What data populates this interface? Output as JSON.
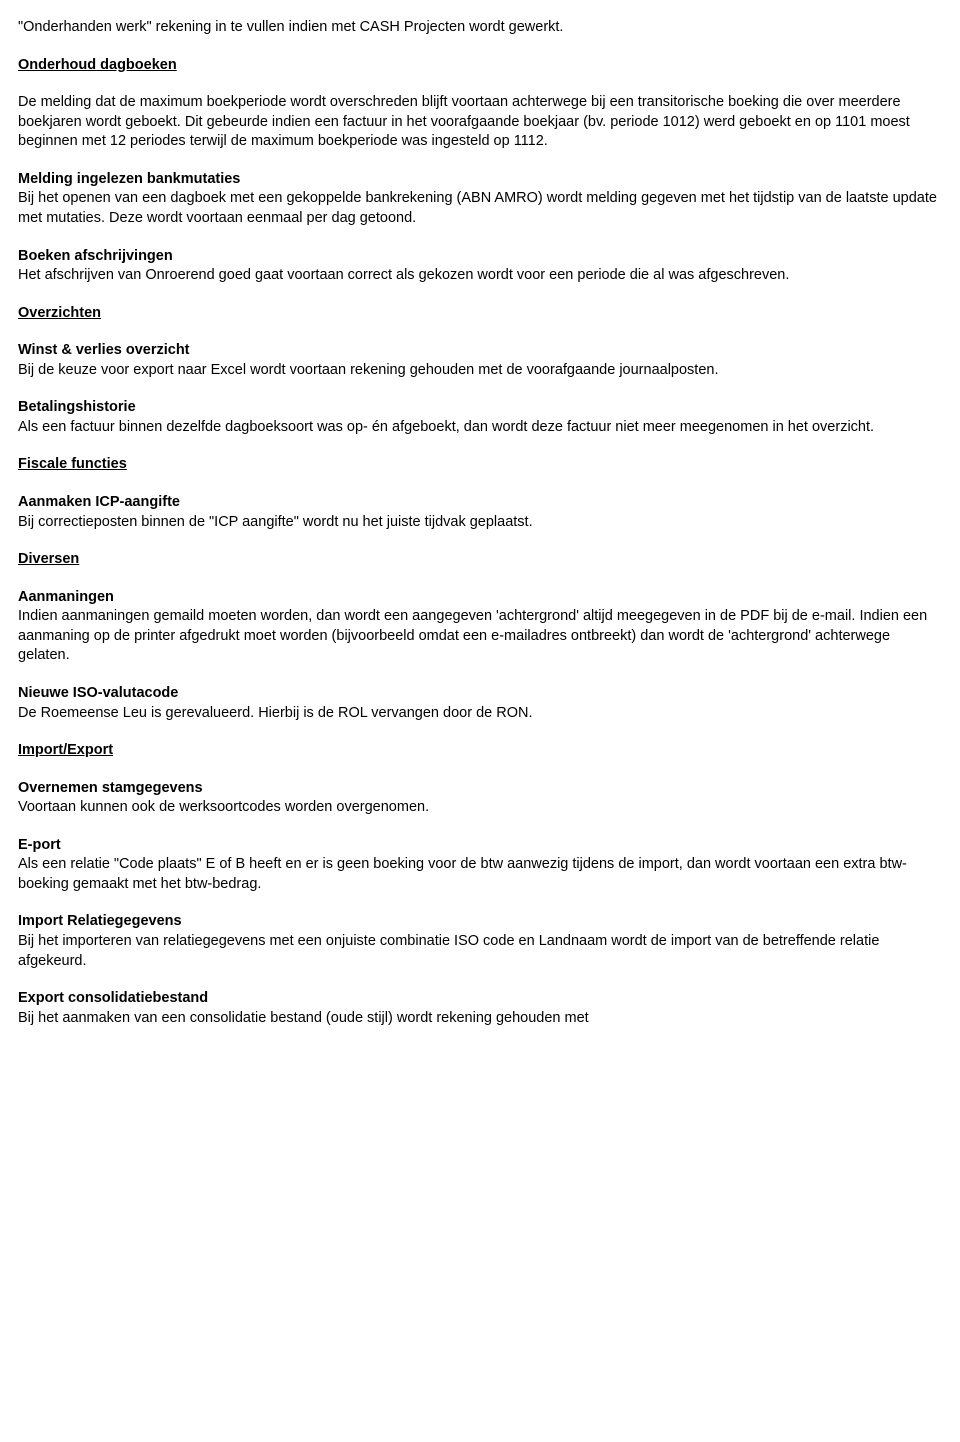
{
  "intro": "\"Onderhanden werk\" rekening in te vullen indien met CASH Projecten wordt gewerkt.",
  "sections": [
    {
      "heading": "Onderhoud dagboeken",
      "blocks": [
        {
          "title": null,
          "body": "De melding dat de maximum boekperiode wordt overschreden blijft voortaan achterwege bij een transitorische boeking die over meerdere boekjaren wordt geboekt. Dit gebeurde indien een factuur in het voorafgaande boekjaar (bv. periode 1012) werd geboekt en op 1101 moest beginnen met 12 periodes terwijl de maximum boekperiode was ingesteld op 1112."
        },
        {
          "title": "Melding ingelezen bankmutaties",
          "body": "Bij het openen van een dagboek met een gekoppelde bankrekening (ABN AMRO) wordt melding gegeven met het tijdstip van de laatste update met mutaties. Deze wordt voortaan eenmaal per dag getoond."
        },
        {
          "title": "Boeken afschrijvingen",
          "body": "Het afschrijven van Onroerend goed gaat voortaan correct als gekozen wordt voor een periode die al was afgeschreven."
        }
      ]
    },
    {
      "heading": "Overzichten",
      "blocks": [
        {
          "title": "Winst & verlies overzicht",
          "body": "Bij de keuze voor export naar Excel wordt voortaan rekening gehouden met de voorafgaande journaalposten."
        },
        {
          "title": "Betalingshistorie",
          "body": "Als een factuur binnen dezelfde dagboeksoort was op- én afgeboekt, dan wordt deze factuur niet meer meegenomen in het overzicht."
        }
      ]
    },
    {
      "heading": "Fiscale functies",
      "blocks": [
        {
          "title": "Aanmaken ICP-aangifte",
          "body": "Bij correctieposten binnen de \"ICP aangifte\" wordt nu het juiste tijdvak geplaatst."
        }
      ]
    },
    {
      "heading": "Diversen",
      "blocks": [
        {
          "title": "Aanmaningen",
          "body": "Indien aanmaningen gemaild moeten worden, dan wordt een aangegeven 'achtergrond' altijd meegegeven in de PDF bij de e-mail. Indien een aanmaning op de printer afgedrukt moet worden (bijvoorbeeld omdat een e-mailadres ontbreekt) dan wordt de 'achtergrond' achterwege gelaten."
        },
        {
          "title": "Nieuwe ISO-valutacode",
          "body": "De Roemeense Leu is gerevalueerd. Hierbij is de ROL vervangen door de RON."
        }
      ]
    },
    {
      "heading": "Import/Export",
      "blocks": [
        {
          "title": "Overnemen stamgegevens",
          "body": "Voortaan kunnen ook de werksoortcodes worden overgenomen."
        },
        {
          "title": "E-port",
          "body": "Als een relatie \"Code plaats\" E of B heeft en er is geen boeking voor de btw aanwezig tijdens de import, dan wordt voortaan een extra btw-boeking gemaakt met het btw-bedrag."
        },
        {
          "title": "Import Relatiegegevens",
          "body": "Bij het importeren van relatiegegevens met een onjuiste combinatie ISO code en Landnaam wordt de import van de betreffende relatie afgekeurd."
        },
        {
          "title": "Export consolidatiebestand",
          "body": "Bij het aanmaken van een consolidatie bestand (oude stijl) wordt rekening gehouden met"
        }
      ]
    }
  ]
}
